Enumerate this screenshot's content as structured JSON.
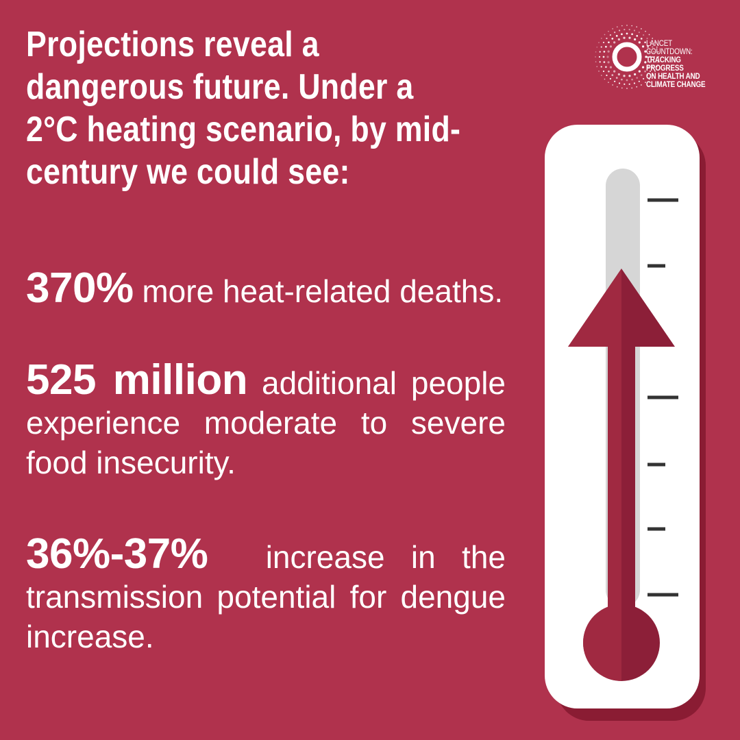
{
  "headline": "Projections reveal a dangerous future. Under a 2°C heating scenario, by mid-century we could see:",
  "stats": [
    {
      "figure": "370%",
      "text": "more heat-related deaths."
    },
    {
      "figure": "525 million",
      "text": "additional people experience moderate to severe food insecurity."
    },
    {
      "figure": "36%-37%",
      "text": "increase in the transmission potential for dengue increase."
    }
  ],
  "logo": {
    "line1": "Lancet Countdown:",
    "line2": "Tracking Progress",
    "line3": "on Health and",
    "line4": "Climate Change"
  },
  "thermometer": {
    "icon": "thermometer-icon",
    "arrow_icon": "up-arrow-icon",
    "level": 0.78
  },
  "colors": {
    "background": "#b0324d",
    "arrow": "#8c1f38",
    "thermometer_body": "#ffffff",
    "thermometer_tube": "#d6d6d6",
    "shadow": "#8a1c33",
    "ticks": "#333333"
  }
}
